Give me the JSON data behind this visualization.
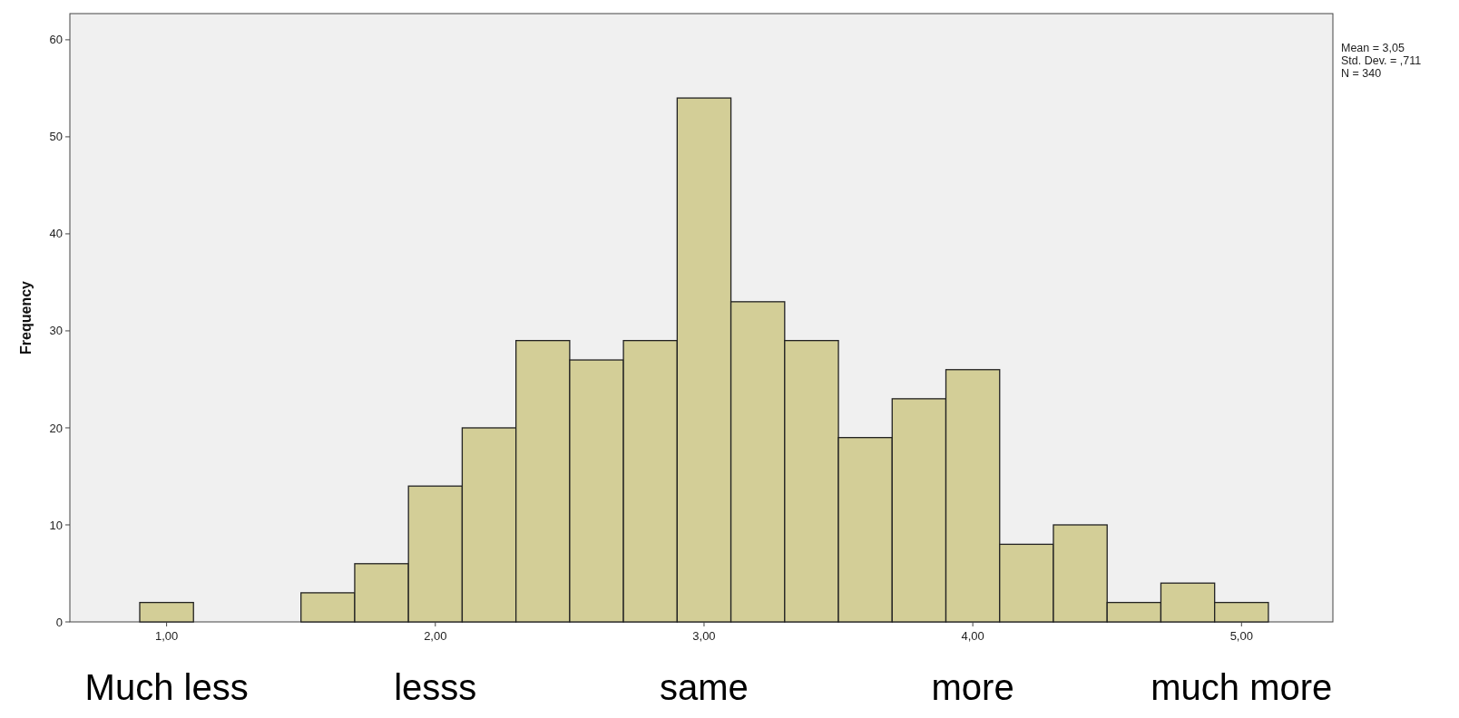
{
  "chart_data": {
    "type": "histogram",
    "ylabel": "Frequency",
    "bins": [
      0.9,
      1.1,
      1.3,
      1.5,
      1.7,
      1.9,
      2.1,
      2.3,
      2.5,
      2.7,
      2.9,
      3.1,
      3.3,
      3.5,
      3.7,
      3.9,
      4.1,
      4.3,
      4.5,
      4.7,
      4.9,
      5.1
    ],
    "values": [
      2,
      0,
      0,
      3,
      6,
      14,
      20,
      29,
      27,
      29,
      54,
      33,
      29,
      19,
      23,
      26,
      8,
      10,
      2,
      4,
      2
    ],
    "color": "#d3ce97",
    "xlim": [
      0.64,
      5.34
    ],
    "xticks": [
      {
        "value": 1,
        "label": "1,00"
      },
      {
        "value": 2,
        "label": "2,00"
      },
      {
        "value": 3,
        "label": "3,00"
      },
      {
        "value": 4,
        "label": "4,00"
      },
      {
        "value": 5,
        "label": "5,00"
      }
    ],
    "ylim": [
      0,
      62.7
    ],
    "yticks": [
      0,
      10,
      20,
      30,
      40,
      50,
      60
    ],
    "annotations": [
      "Mean = 3,05",
      "Std. Dev. = ,711",
      "N = 340",
      "Much less",
      "lesss",
      "same",
      "more",
      "much more"
    ]
  }
}
